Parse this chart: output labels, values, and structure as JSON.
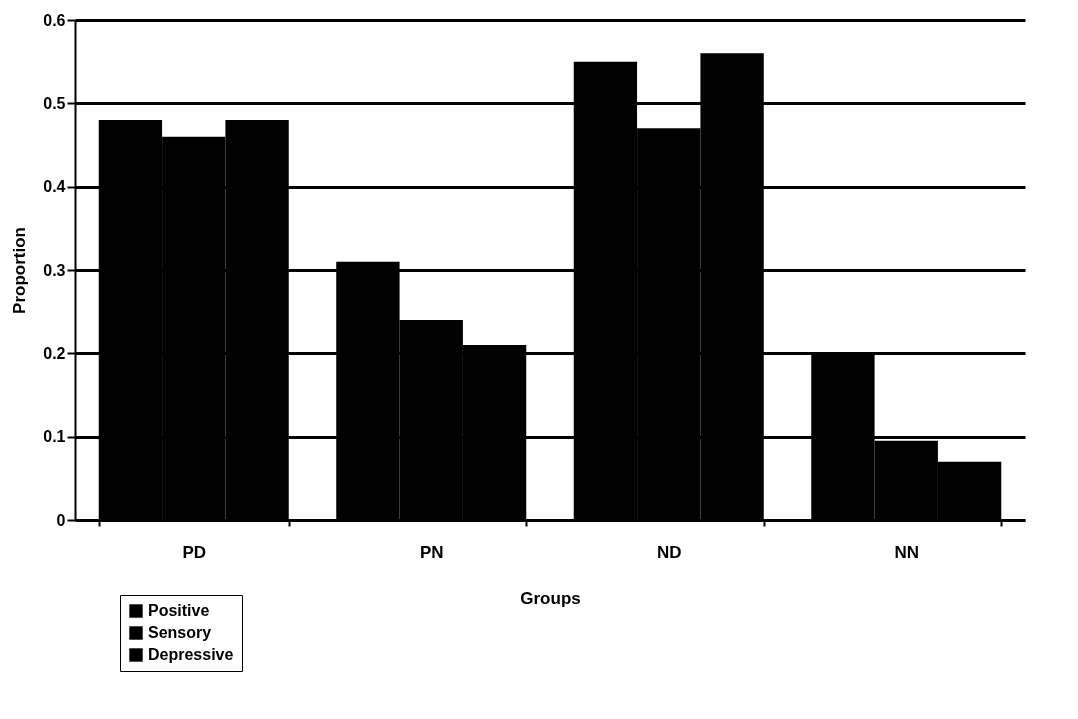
{
  "chart_data": {
    "type": "bar",
    "xlabel": "Groups",
    "ylabel": "Proportion",
    "categories": [
      "PD",
      "PN",
      "ND",
      "NN"
    ],
    "series": [
      {
        "name": "Positive",
        "color": "#000000",
        "values": [
          0.48,
          0.31,
          0.55,
          0.2
        ]
      },
      {
        "name": "Sensory",
        "color": "#000000",
        "values": [
          0.46,
          0.24,
          0.47,
          0.095
        ]
      },
      {
        "name": "Depressive",
        "color": "#000000",
        "values": [
          0.48,
          0.21,
          0.56,
          0.07
        ]
      }
    ],
    "ylim": [
      0,
      0.6
    ],
    "yticks": [
      0,
      0.1,
      0.2,
      0.3,
      0.4,
      0.5,
      0.6
    ],
    "grid": "y",
    "legend": "bottom left"
  }
}
